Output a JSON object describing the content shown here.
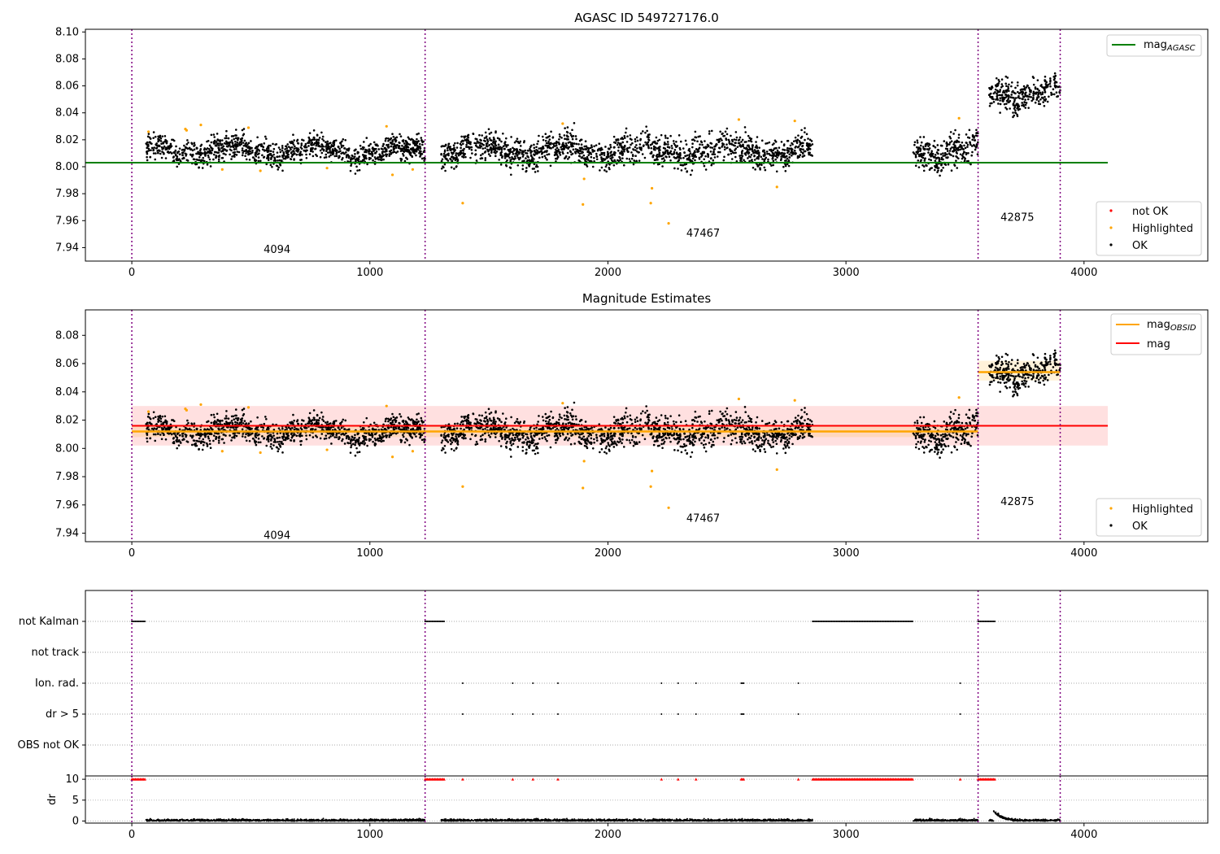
{
  "figure": {
    "title_top": "AGASC ID 549727176.0",
    "title_mid": "Magnitude Estimates"
  },
  "chart_data": [
    {
      "type": "scatter",
      "panel": "top",
      "title": "AGASC ID 549727176.0",
      "xlim": [
        -195,
        4520
      ],
      "ylim": [
        7.93,
        8.102
      ],
      "yticks": [
        "7.94",
        "7.96",
        "7.98",
        "8.00",
        "8.02",
        "8.04",
        "8.06",
        "8.08",
        "8.10"
      ],
      "xticks": [
        "0",
        "1000",
        "2000",
        "3000",
        "4000"
      ],
      "obs_boundaries": [
        0,
        1232,
        3555,
        3900
      ],
      "obs_labels": [
        {
          "text": "4094",
          "x": 610,
          "y": 7.936
        },
        {
          "text": "47467",
          "x": 2400,
          "y": 7.948
        },
        {
          "text": "42875",
          "x": 3720,
          "y": 7.96
        }
      ],
      "mag_agasc": 8.003,
      "mag_agasc_range": [
        0,
        4100
      ],
      "series": [
        {
          "name": "not OK",
          "color": "#ff0000"
        },
        {
          "name": "Highlighted",
          "color": "#ffa500"
        },
        {
          "name": "OK",
          "color": "#000000"
        }
      ],
      "legend_top": "mag_AGASC"
    },
    {
      "type": "scatter",
      "panel": "middle",
      "title": "Magnitude Estimates",
      "xlim": [
        -195,
        4520
      ],
      "ylim": [
        7.934,
        8.098
      ],
      "yticks": [
        "7.94",
        "7.96",
        "7.98",
        "8.00",
        "8.02",
        "8.04",
        "8.06",
        "8.08"
      ],
      "xticks": [
        "0",
        "1000",
        "2000",
        "3000",
        "4000"
      ],
      "mag": 8.016,
      "mag_band": [
        8.002,
        8.03
      ],
      "mag_obsid_segments": [
        {
          "x0": 0,
          "x1": 3555,
          "y": 8.012,
          "band": [
            8.008,
            8.016
          ]
        },
        {
          "x0": 3555,
          "x1": 3900,
          "y": 8.054,
          "band": [
            8.048,
            8.062
          ]
        }
      ],
      "series": [
        {
          "name": "Highlighted",
          "color": "#ffa500"
        },
        {
          "name": "OK",
          "color": "#000000"
        }
      ],
      "legend": [
        "mag_OBSID",
        "mag"
      ]
    },
    {
      "type": "scatter",
      "panel": "flags",
      "categories": [
        "not Kalman",
        "not track",
        "Ion. rad.",
        "dr > 5",
        "OBS not OK"
      ],
      "not_kalman_ranges": [
        [
          0,
          55
        ],
        [
          1232,
          1315
        ],
        [
          2860,
          3280
        ],
        [
          3555,
          3625
        ]
      ],
      "ion_rad_x": [
        1390,
        1600,
        1685,
        1790,
        2225,
        2295,
        2370,
        2560,
        2565,
        2570,
        2800,
        3480
      ],
      "dr_gt5_x": [
        1390,
        1600,
        1685,
        1790,
        2225,
        2295,
        2370,
        2560,
        2565,
        2570,
        2800,
        3480
      ]
    },
    {
      "type": "scatter",
      "panel": "dr",
      "ylabel": "dr",
      "yticks": [
        "0",
        "5",
        "10"
      ],
      "ylim": [
        -0.5,
        10.8
      ],
      "xticks": [
        "0",
        "1000",
        "2000",
        "3000",
        "4000"
      ],
      "dr_flag_value": 10
    }
  ],
  "legends": {
    "top_line": "mag",
    "top_line_sub": "AGASC",
    "top_points": [
      "not OK",
      "Highlighted",
      "OK"
    ],
    "mid_line1": "mag",
    "mid_line1_sub": "OBSID",
    "mid_line2": "mag",
    "mid_points": [
      "Highlighted",
      "OK"
    ]
  },
  "colors": {
    "ok": "#000000",
    "highlighted": "#ffa500",
    "not_ok": "#ff0000",
    "agasc_line": "#008000",
    "obsid_line": "#ffa500",
    "mag_line": "#ff0000",
    "boundary": "#800080"
  }
}
